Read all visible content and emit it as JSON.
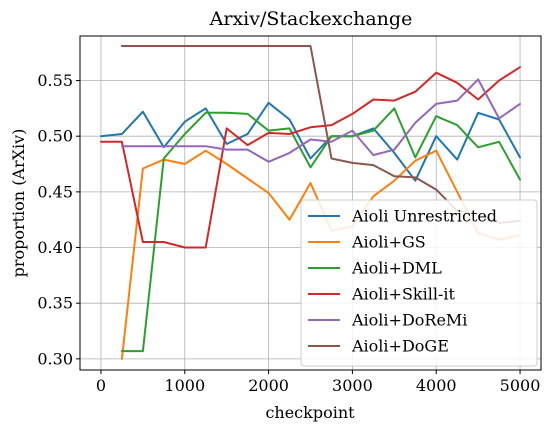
{
  "chart_data": {
    "type": "line",
    "title": "Arxiv/Stackexchange",
    "xlabel": "checkpoint",
    "ylabel": "proportion (ArXiv)",
    "xlim": [
      -250,
      5250
    ],
    "ylim": [
      0.29,
      0.59
    ],
    "xticks": [
      0,
      1000,
      2000,
      3000,
      4000,
      5000
    ],
    "yticks": [
      0.3,
      0.35,
      0.4,
      0.45,
      0.5,
      0.55
    ],
    "grid": true,
    "legend_position": "lower-right",
    "series": [
      {
        "name": "Aioli Unrestricted",
        "color": "#1f77b4",
        "x": [
          0,
          250,
          500,
          750,
          1000,
          1250,
          1500,
          1750,
          2000,
          2250,
          2500,
          2750,
          3000,
          3250,
          3500,
          3750,
          4000,
          4250,
          4500,
          4750,
          5000
        ],
        "y": [
          0.5,
          0.502,
          0.522,
          0.49,
          0.513,
          0.525,
          0.493,
          0.502,
          0.53,
          0.515,
          0.48,
          0.5,
          0.5,
          0.507,
          0.485,
          0.46,
          0.5,
          0.479,
          0.521,
          0.515,
          0.481
        ]
      },
      {
        "name": "Aioli+GS",
        "color": "#ff7f0e",
        "x": [
          250,
          500,
          750,
          1000,
          1250,
          1500,
          1750,
          2000,
          2250,
          2500,
          2750,
          3000,
          3250,
          3500,
          3750,
          4000,
          4250,
          4500,
          4750,
          5000
        ],
        "y": [
          0.3,
          0.471,
          0.479,
          0.475,
          0.487,
          0.475,
          0.462,
          0.449,
          0.425,
          0.458,
          0.415,
          0.419,
          0.446,
          0.46,
          0.478,
          0.487,
          0.45,
          0.413,
          0.407,
          0.411
        ]
      },
      {
        "name": "Aioli+DML",
        "color": "#2ca02c",
        "x": [
          250,
          500,
          750,
          1000,
          1250,
          1500,
          1750,
          2000,
          2250,
          2500,
          2750,
          3000,
          3250,
          3500,
          3750,
          4000,
          4250,
          4500,
          4750,
          5000
        ],
        "y": [
          0.307,
          0.307,
          0.48,
          0.502,
          0.521,
          0.521,
          0.52,
          0.505,
          0.507,
          0.472,
          0.5,
          0.5,
          0.505,
          0.525,
          0.481,
          0.518,
          0.51,
          0.49,
          0.495,
          0.461
        ]
      },
      {
        "name": "Aioli+Skill-it",
        "color": "#d62728",
        "x": [
          0,
          250,
          500,
          750,
          1000,
          1250,
          1500,
          1750,
          2000,
          2250,
          2500,
          2750,
          3000,
          3250,
          3500,
          3750,
          4000,
          4250,
          4500,
          4750,
          5000
        ],
        "y": [
          0.495,
          0.495,
          0.405,
          0.405,
          0.4,
          0.4,
          0.507,
          0.492,
          0.503,
          0.502,
          0.508,
          0.51,
          0.52,
          0.533,
          0.532,
          0.54,
          0.557,
          0.548,
          0.533,
          0.55,
          0.562
        ]
      },
      {
        "name": "Aioli+DoReMi",
        "color": "#9467bd",
        "x": [
          250,
          500,
          750,
          1000,
          1250,
          1500,
          1750,
          2000,
          2250,
          2500,
          2750,
          3000,
          3250,
          3500,
          3750,
          4000,
          4250,
          4500,
          4750,
          5000
        ],
        "y": [
          0.491,
          0.491,
          0.491,
          0.491,
          0.491,
          0.488,
          0.488,
          0.477,
          0.485,
          0.497,
          0.495,
          0.505,
          0.483,
          0.488,
          0.512,
          0.529,
          0.532,
          0.551,
          0.516,
          0.529
        ]
      },
      {
        "name": "Aioli+DoGE",
        "color": "#8c564b",
        "x": [
          250,
          500,
          750,
          1000,
          1250,
          1500,
          1750,
          2000,
          2250,
          2500,
          2750,
          3000,
          3250,
          3500,
          3750,
          4000,
          4250,
          4500,
          4750,
          5000
        ],
        "y": [
          0.581,
          0.581,
          0.581,
          0.581,
          0.581,
          0.581,
          0.581,
          0.581,
          0.581,
          0.581,
          0.48,
          0.476,
          0.474,
          0.464,
          0.463,
          0.452,
          0.433,
          0.43,
          0.422,
          0.424
        ]
      }
    ]
  }
}
